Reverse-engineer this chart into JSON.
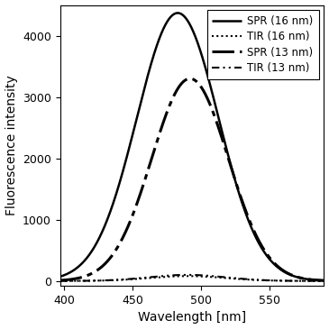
{
  "title": "",
  "xlabel": "Wavelength [nm]",
  "ylabel": "Fluorescence intensity",
  "xlim": [
    397,
    590
  ],
  "ylim": [
    -80,
    4500
  ],
  "xticks": [
    400,
    450,
    500,
    550
  ],
  "yticks": [
    0,
    1000,
    2000,
    3000,
    4000
  ],
  "curves": [
    {
      "label": "SPR (16 nm)",
      "linestyle_key": "solid",
      "linewidth": 1.8,
      "color": "#000000",
      "peak": 483,
      "amplitude": 4370,
      "sigma": 30
    },
    {
      "label": "TIR (16 nm)",
      "linestyle_key": "dotted",
      "linewidth": 1.5,
      "color": "#000000",
      "peak": 490,
      "amplitude": 80,
      "sigma": 28
    },
    {
      "label": "SPR (13 nm)",
      "linestyle_key": "longdashdot",
      "linewidth": 2.2,
      "color": "#000000",
      "peak": 492,
      "amplitude": 3300,
      "sigma": 28
    },
    {
      "label": "TIR (13 nm)",
      "linestyle_key": "shortdash",
      "linewidth": 1.5,
      "color": "#000000",
      "peak": 490,
      "amplitude": 100,
      "sigma": 28
    }
  ],
  "background_color": "#ffffff",
  "legend_fontsize": 8.5,
  "axis_fontsize": 10,
  "tick_fontsize": 9
}
